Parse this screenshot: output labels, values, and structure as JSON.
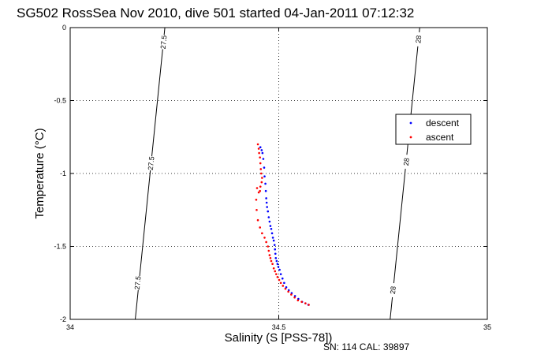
{
  "chart_data": {
    "type": "scatter",
    "title": "SG502 RossSea Nov 2010, dive 501 started 04-Jan-2011 07:12:32",
    "xlabel": "Salinity (S [PSS-78])",
    "ylabel": "Temperature (°C)",
    "xlim": [
      34,
      35
    ],
    "ylim": [
      -2,
      0
    ],
    "xticks": [
      34,
      34.5,
      35
    ],
    "xtick_labels": [
      "34",
      "34.5",
      "35"
    ],
    "yticks": [
      0,
      -0.5,
      -1,
      -1.5,
      -2
    ],
    "ytick_labels": [
      "0",
      "-0.5",
      "-1",
      "-1.5",
      "-2"
    ],
    "grid": true,
    "legend_position": "right",
    "series": [
      {
        "name": "descent",
        "color": "#0000ff",
        "marker": "dot",
        "x": [
          34.456,
          34.459,
          34.461,
          34.463,
          34.465,
          34.466,
          34.468,
          34.469,
          34.47,
          34.471,
          34.472,
          34.474,
          34.476,
          34.478,
          34.48,
          34.482,
          34.484,
          34.486,
          34.488,
          34.49,
          34.491,
          34.492,
          34.493,
          34.495,
          34.497,
          34.499,
          34.502,
          34.505,
          34.509,
          34.513,
          34.518,
          34.524,
          34.531,
          34.539,
          34.547,
          34.556,
          34.564,
          34.571
        ],
        "y": [
          -0.82,
          -0.84,
          -0.86,
          -0.9,
          -0.96,
          -1.02,
          -1.07,
          -1.12,
          -1.17,
          -1.2,
          -1.23,
          -1.26,
          -1.3,
          -1.33,
          -1.36,
          -1.38,
          -1.41,
          -1.44,
          -1.46,
          -1.49,
          -1.52,
          -1.55,
          -1.58,
          -1.6,
          -1.62,
          -1.64,
          -1.66,
          -1.69,
          -1.72,
          -1.75,
          -1.78,
          -1.8,
          -1.82,
          -1.84,
          -1.86,
          -1.88,
          -1.89,
          -1.9
        ]
      },
      {
        "name": "ascent",
        "color": "#ff0000",
        "marker": "dot",
        "x": [
          34.45,
          34.452,
          34.453,
          34.455,
          34.456,
          34.457,
          34.458,
          34.46,
          34.459,
          34.456,
          34.455,
          34.452,
          34.448,
          34.446,
          34.447,
          34.45,
          34.455,
          34.46,
          34.466,
          34.47,
          34.474,
          34.476,
          34.478,
          34.48,
          34.482,
          34.485,
          34.488,
          34.491,
          34.494,
          34.497,
          34.501,
          34.505,
          34.51,
          34.516,
          34.523,
          34.53,
          34.538,
          34.546,
          34.555,
          34.564,
          34.572
        ],
        "y": [
          -0.8,
          -0.83,
          -0.86,
          -0.89,
          -0.93,
          -0.97,
          -1.0,
          -1.03,
          -1.06,
          -1.09,
          -1.12,
          -1.13,
          -1.1,
          -1.18,
          -1.25,
          -1.32,
          -1.37,
          -1.41,
          -1.44,
          -1.47,
          -1.5,
          -1.53,
          -1.56,
          -1.58,
          -1.6,
          -1.62,
          -1.65,
          -1.67,
          -1.69,
          -1.71,
          -1.73,
          -1.75,
          -1.77,
          -1.79,
          -1.81,
          -1.83,
          -1.85,
          -1.87,
          -1.88,
          -1.89,
          -1.9
        ]
      }
    ],
    "density_contours": [
      {
        "label": "27.5",
        "points": [
          [
            34.156,
            -2.0
          ],
          [
            34.227,
            0.0
          ]
        ],
        "label_positions": [
          [
            34.162,
            -1.75
          ],
          [
            34.194,
            -0.93
          ],
          [
            34.224,
            -0.1
          ]
        ]
      },
      {
        "label": "28",
        "points": [
          [
            34.767,
            -2.0
          ],
          [
            34.838,
            0.0
          ]
        ],
        "label_positions": [
          [
            34.774,
            -1.8
          ],
          [
            34.806,
            -0.92
          ],
          [
            34.835,
            -0.08
          ]
        ]
      }
    ]
  },
  "legend": {
    "descent_label": "descent",
    "ascent_label": "ascent"
  },
  "footer": {
    "text": "SN: 114  CAL: 39897"
  }
}
